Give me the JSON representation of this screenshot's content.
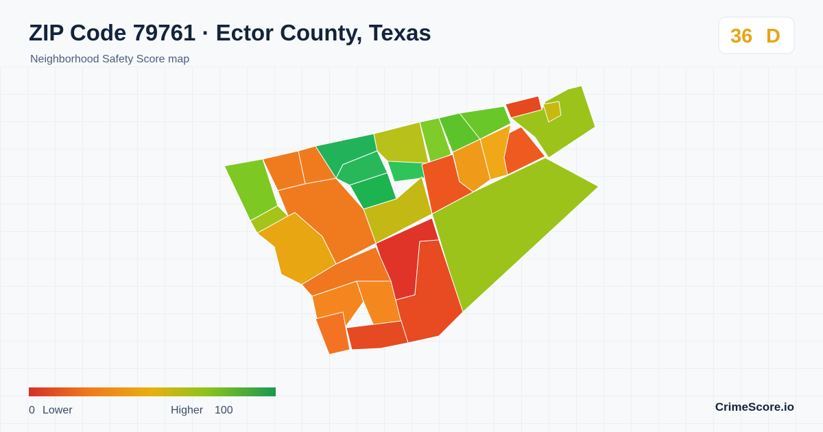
{
  "header": {
    "title": "ZIP Code 79761 · Ector County, Texas",
    "subtitle": "Neighborhood Safety Score map"
  },
  "score": {
    "value": 36,
    "grade": "D"
  },
  "legend": {
    "min": 0,
    "min_label": "Lower",
    "max_label": "Higher",
    "max": 100
  },
  "brand": "CrimeScore.io"
}
